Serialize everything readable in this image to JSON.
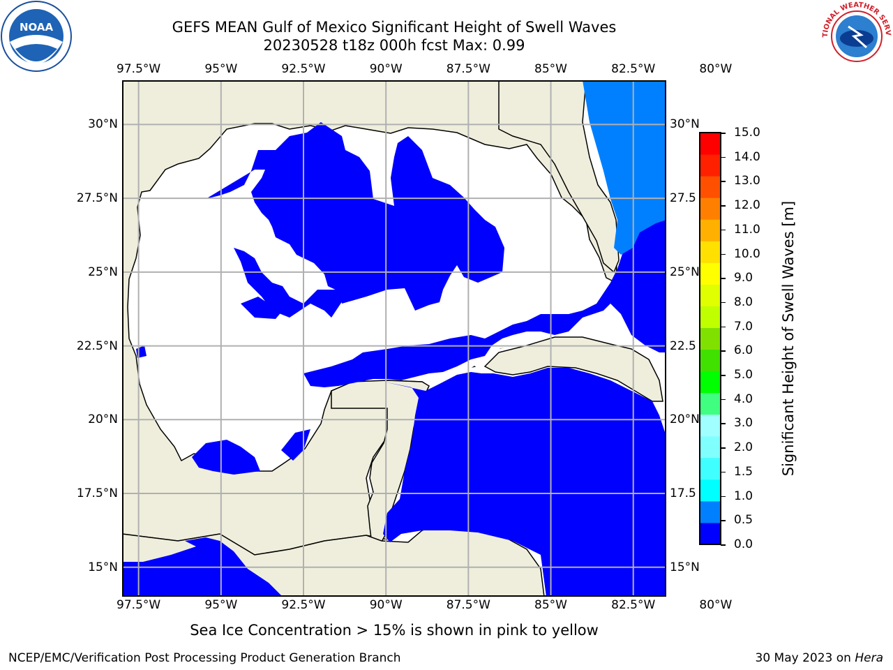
{
  "header": {
    "title_line1": "GEFS MEAN Gulf of Mexico Significant Height of Swell Waves",
    "title_line2": "20230528 t18z 000h fcst   Max: 0.99"
  },
  "map": {
    "lon_ticks": [
      "97.5°W",
      "95°W",
      "92.5°W",
      "90°W",
      "87.5°W",
      "85°W",
      "82.5°W",
      "80°W"
    ],
    "lat_ticks_left": [
      "30°N",
      "27.5°N",
      "25°N",
      "22.5°N",
      "20°N",
      "17.5°N",
      "15°N"
    ],
    "lat_ticks_right": [
      "30°N",
      "27.5",
      "25°N",
      "22.5",
      "20°N",
      "17.5",
      "15°N"
    ],
    "lon_range": [
      -98,
      -81.5
    ],
    "lat_range": [
      14,
      31.5
    ],
    "colors": {
      "land": "#efeedc",
      "ocean_calm": "#ffffff",
      "band_0_0p5": "#0000ff",
      "band_0p5_1": "#0080ff",
      "gridline": "#b0b0b0"
    }
  },
  "colorbar": {
    "title": "Significant Height of Swell Waves [m]",
    "labels": [
      "15.0",
      "14.0",
      "13.0",
      "12.0",
      "11.0",
      "10.0",
      "9.0",
      "8.0",
      "7.0",
      "6.0",
      "5.0",
      "4.0",
      "3.0",
      "2.0",
      "1.5",
      "1.0",
      "0.5",
      "0.0"
    ],
    "colors_bottom_to_top": [
      "#0000ff",
      "#0080ff",
      "#00ffff",
      "#40ffff",
      "#80ffff",
      "#a0ffff",
      "#40ff80",
      "#00ff00",
      "#40e000",
      "#80e000",
      "#c0ff00",
      "#e0ff00",
      "#ffff00",
      "#ffe000",
      "#ffb000",
      "#ff8000",
      "#ff5000",
      "#ff2000",
      "#ff0000"
    ]
  },
  "footer": {
    "note": "Sea Ice Concentration > 15% is shown in pink to yellow",
    "credit_left": "NCEP/EMC/Verification Post Processing Product Generation Branch",
    "date": "30 May 2023 on",
    "host": "Hera"
  },
  "logos": {
    "noaa_text": "NOAA",
    "nws_text": "NATIONAL WEATHER SERVICE"
  }
}
